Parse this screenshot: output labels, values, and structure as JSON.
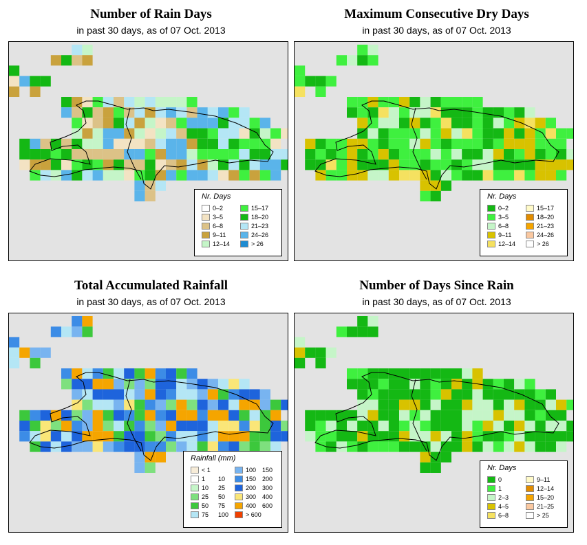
{
  "panels": [
    {
      "title": "Number of Rain Days",
      "subtitle": "in past 30 days, as of  07 Oct. 2013",
      "legend": {
        "title": "Nr. Days",
        "items": [
          {
            "label": "0–2",
            "color": "#ffffff"
          },
          {
            "label": "3–5",
            "color": "#f3e3c3"
          },
          {
            "label": "6–8",
            "color": "#dcc287"
          },
          {
            "label": "9–11",
            "color": "#c9a23d"
          },
          {
            "label": "12–14",
            "color": "#c5f5c8"
          },
          {
            "label": "15–17",
            "color": "#3ff03f"
          },
          {
            "label": "18–20",
            "color": "#14b814"
          },
          {
            "label": "21–23",
            "color": "#b4e6f5"
          },
          {
            "label": "24–26",
            "color": "#5ab4ea"
          },
          {
            "label": "> 26",
            "color": "#1e8cd2"
          }
        ]
      }
    },
    {
      "title": "Maximum Consecutive Dry Days",
      "subtitle": "in past 30 days, as of  07 Oct. 2013",
      "legend": {
        "title": "Nr. Days",
        "items": [
          {
            "label": "0–2",
            "color": "#14b814"
          },
          {
            "label": "3–5",
            "color": "#3ff03f"
          },
          {
            "label": "6–8",
            "color": "#c5f5c8"
          },
          {
            "label": "9–11",
            "color": "#d8c200"
          },
          {
            "label": "12–14",
            "color": "#f5e160"
          },
          {
            "label": "15–17",
            "color": "#fffac8"
          },
          {
            "label": "18–20",
            "color": "#e18c00"
          },
          {
            "label": "21–23",
            "color": "#f5a500"
          },
          {
            "label": "24–26",
            "color": "#fac8a0"
          },
          {
            "label": "> 26",
            "color": "#ffffff"
          }
        ]
      }
    },
    {
      "title": "Total Accumulated Rainfall",
      "subtitle": "in past 30 days, as of  07 Oct. 2013",
      "legend": {
        "title": "Rainfall (mm)",
        "items": [
          {
            "lo": "< 1",
            "hi": "",
            "color": "#f7ecd8"
          },
          {
            "lo": "1",
            "hi": "10",
            "color": "#ffffff"
          },
          {
            "lo": "10",
            "hi": "25",
            "color": "#c5f5c8"
          },
          {
            "lo": "25",
            "hi": "50",
            "color": "#7ee07e"
          },
          {
            "lo": "50",
            "hi": "75",
            "color": "#3cc83c"
          },
          {
            "lo": "75",
            "hi": "100",
            "color": "#b4e6f5"
          },
          {
            "lo": "100",
            "hi": "150",
            "color": "#78b4f0"
          },
          {
            "lo": "150",
            "hi": "200",
            "color": "#3c8ce6"
          },
          {
            "lo": "200",
            "hi": "300",
            "color": "#1e64dc"
          },
          {
            "lo": "300",
            "hi": "400",
            "color": "#fae678"
          },
          {
            "lo": "400",
            "hi": "600",
            "color": "#f5a500"
          },
          {
            "lo": "> 600",
            "hi": "",
            "color": "#f04000"
          }
        ]
      }
    },
    {
      "title": "Number of Days Since Rain",
      "subtitle": "in past 30 days, as of  07 Oct. 2013",
      "legend": {
        "title": "Nr. Days",
        "items": [
          {
            "label": "0",
            "color": "#14b814"
          },
          {
            "label": "1",
            "color": "#3ff03f"
          },
          {
            "label": "2–3",
            "color": "#c5f5c8"
          },
          {
            "label": "4–5",
            "color": "#d8c200"
          },
          {
            "label": "6–8",
            "color": "#f5e160"
          },
          {
            "label": "9–11",
            "color": "#fffac8"
          },
          {
            "label": "12–14",
            "color": "#e18c00"
          },
          {
            "label": "15–20",
            "color": "#f5a500"
          },
          {
            "label": "21–25",
            "color": "#fac8a0"
          },
          {
            "label": "> 25",
            "color": "#ffffff"
          }
        ]
      }
    }
  ]
}
